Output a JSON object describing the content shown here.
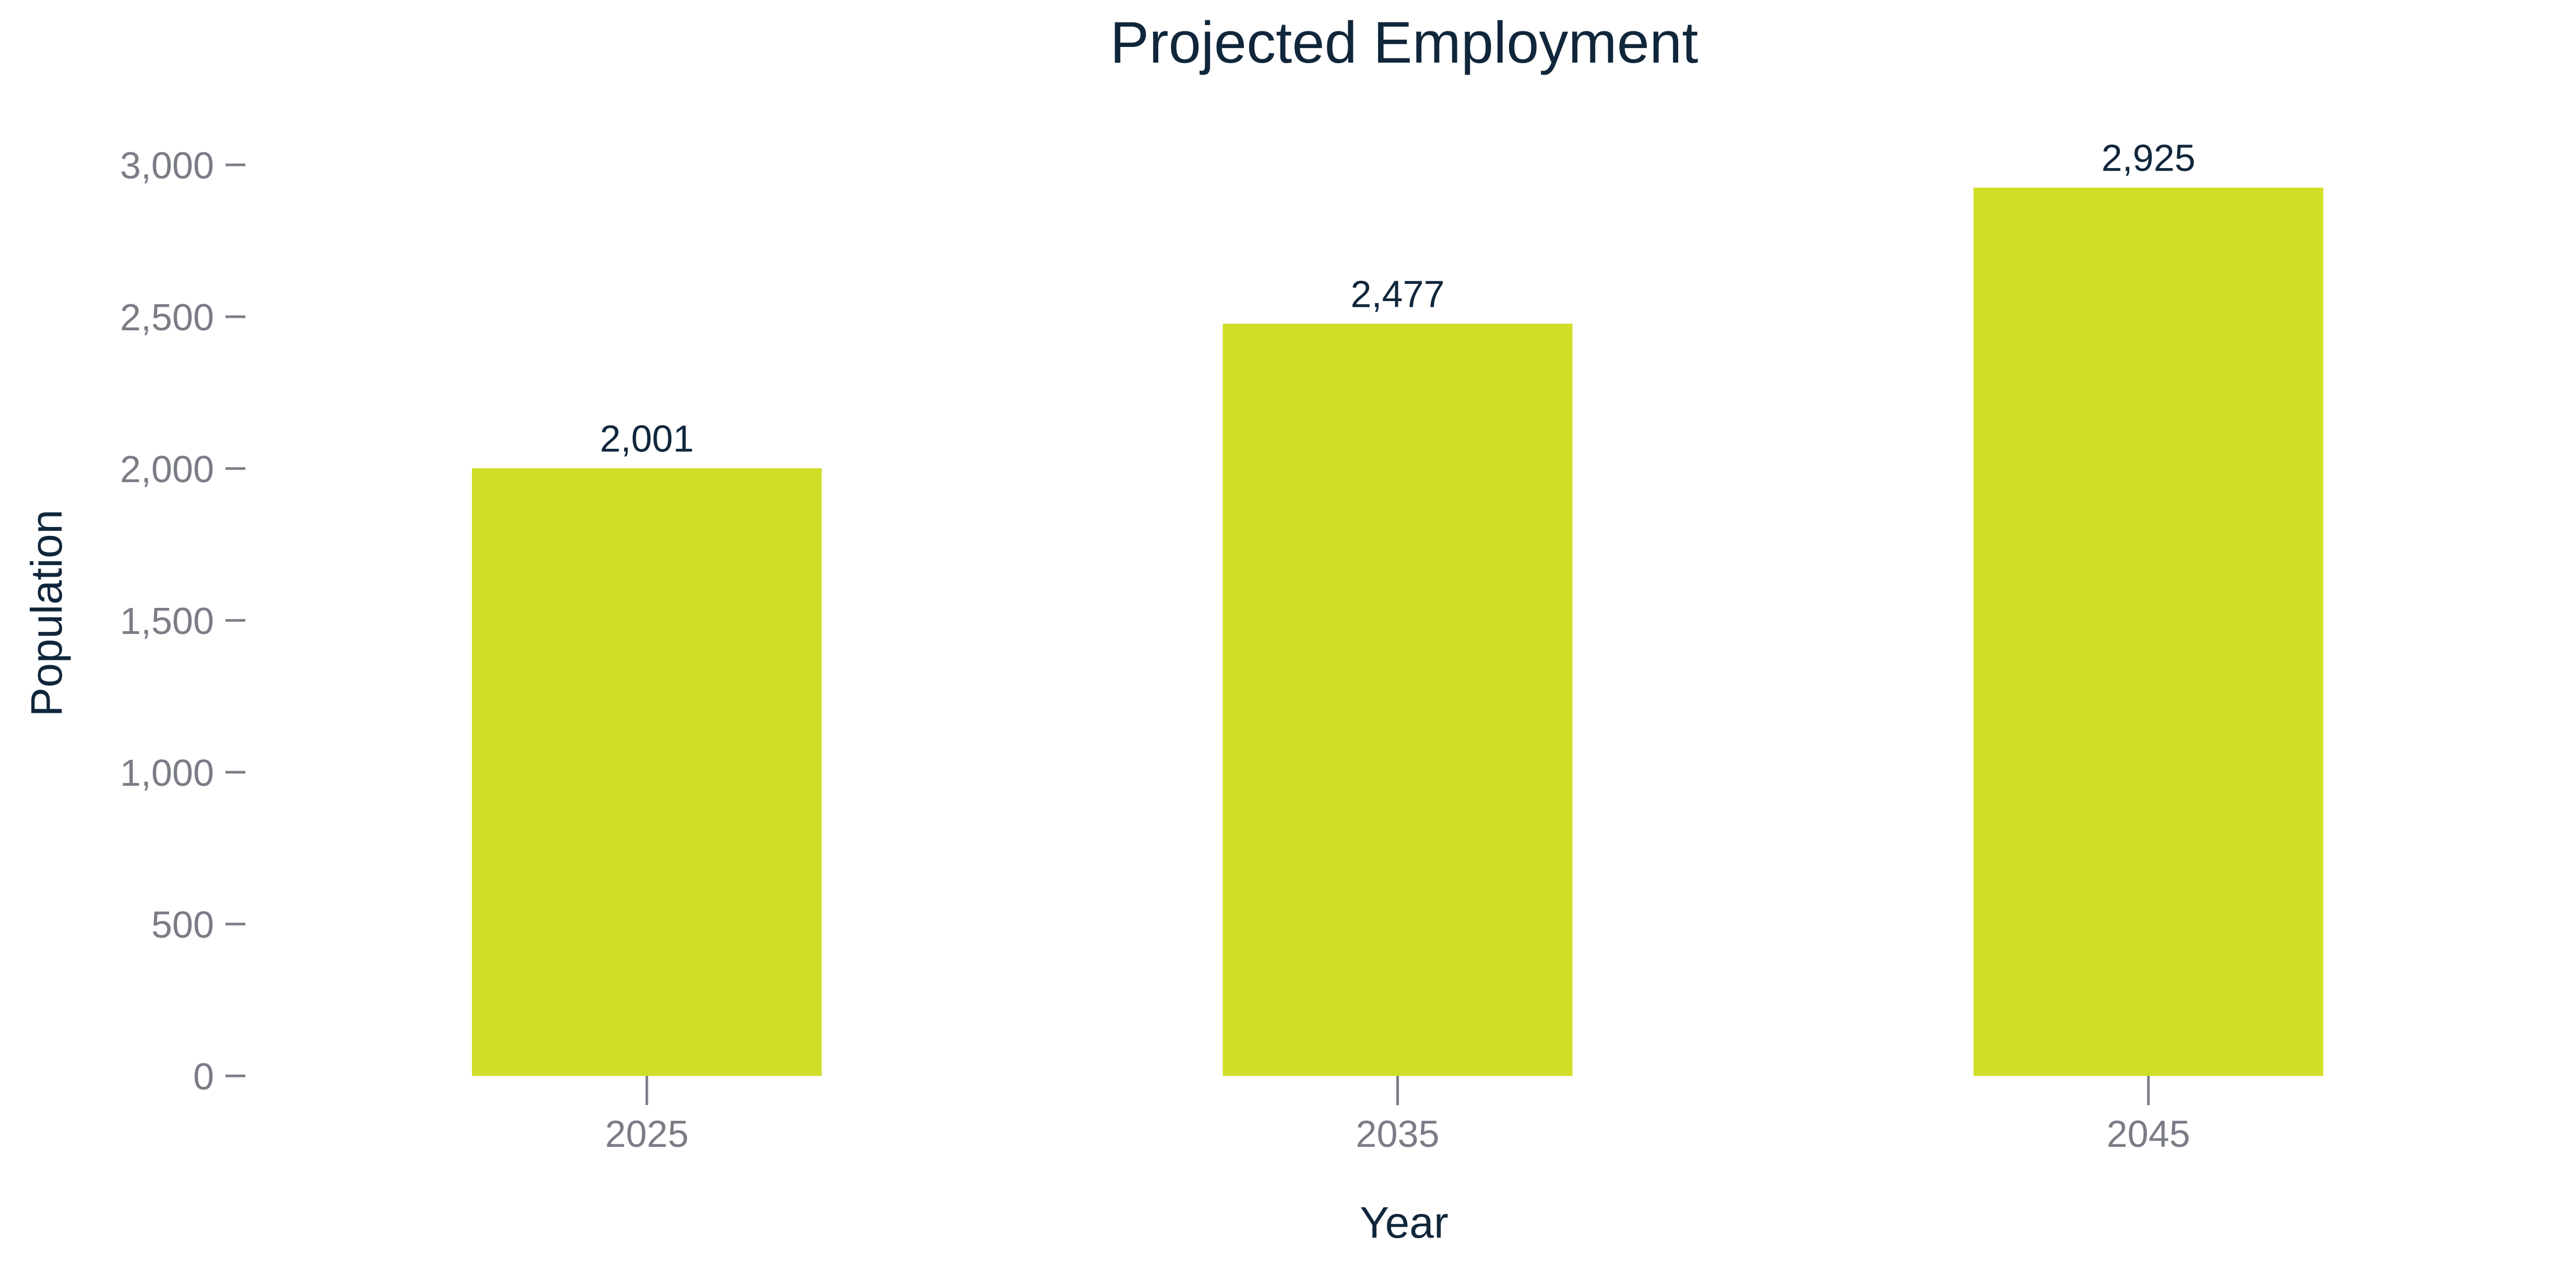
{
  "chart_data": {
    "type": "bar",
    "title": "Projected Employment",
    "xlabel": "Year",
    "ylabel": "Population",
    "categories": [
      "2025",
      "2035",
      "2045"
    ],
    "values": [
      2001,
      2477,
      2925
    ],
    "value_labels": [
      "2,001",
      "2,477",
      "2,925"
    ],
    "ylim": [
      0,
      3000
    ],
    "yticks": [
      0,
      500,
      1000,
      1500,
      2000,
      2500,
      3000
    ],
    "ytick_labels": [
      "0",
      "500",
      "1,000",
      "1,500",
      "2,000",
      "2,500",
      "3,000"
    ],
    "grid": false,
    "legend": "none",
    "colors": {
      "bar": "#d0de27",
      "title": "#10263b",
      "tick": "#7a7d85"
    }
  }
}
